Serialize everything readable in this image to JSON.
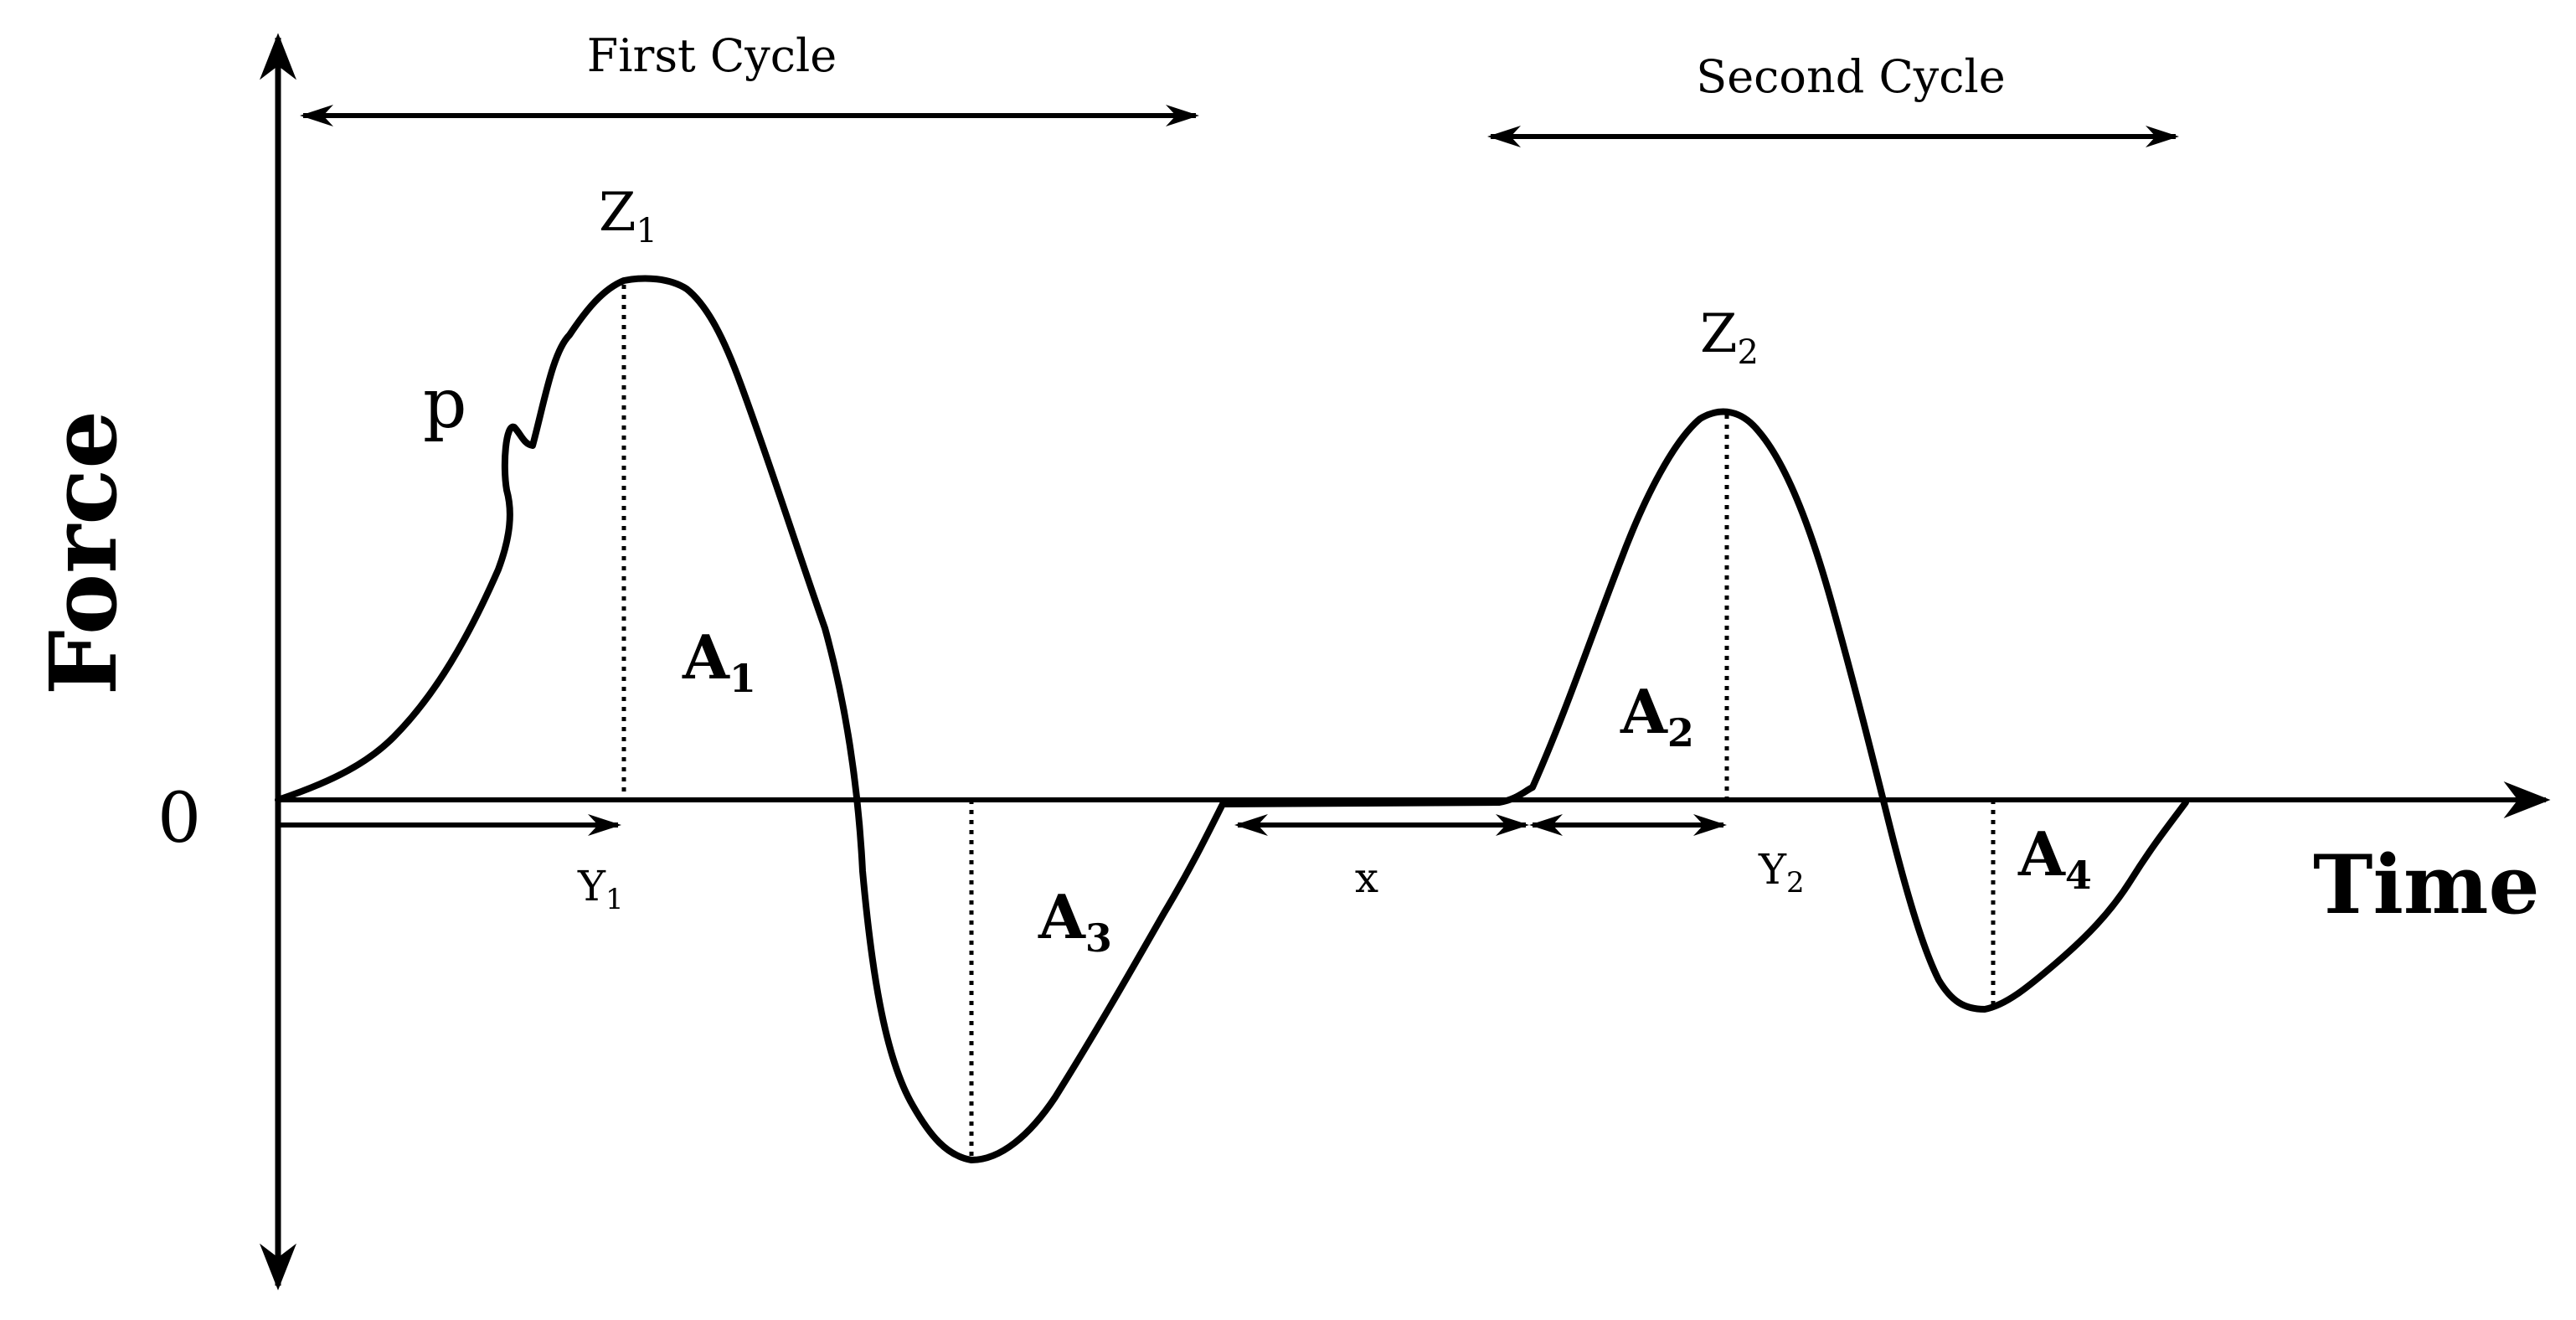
{
  "labels": {
    "first_cycle": "First Cycle",
    "second_cycle": "Second Cycle",
    "z1": "Z",
    "z1_sub": "1",
    "z2": "Z",
    "z2_sub": "2",
    "p": "p",
    "force": "Force",
    "time": "Time",
    "zero": "0",
    "a1": "A",
    "a1_sub": "1",
    "a2": "A",
    "a2_sub": "2",
    "a3": "A",
    "a3_sub": "3",
    "a4": "A",
    "a4_sub": "4",
    "y1": "Y",
    "y1_sub": "1",
    "y2": "Y",
    "y2_sub": "2",
    "x": "x"
  },
  "colors": {
    "stroke": "#000000",
    "background": "#ffffff"
  }
}
